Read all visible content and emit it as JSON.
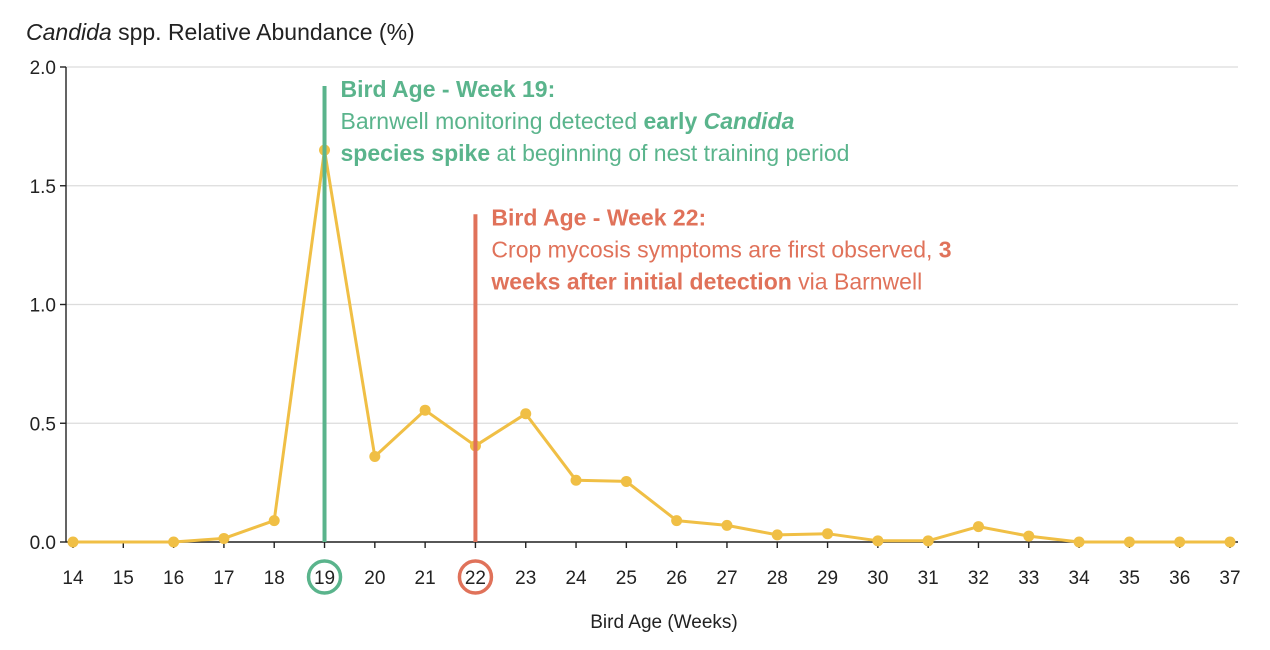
{
  "chart_data": {
    "type": "line",
    "title_italic": "Candida",
    "title_rest": " spp. Relative Abundance (%)",
    "xlabel": "Bird Age (Weeks)",
    "ylabel": "",
    "x": [
      14,
      15,
      16,
      17,
      18,
      19,
      20,
      21,
      22,
      23,
      24,
      25,
      26,
      27,
      28,
      29,
      30,
      31,
      32,
      33,
      34,
      35,
      36,
      37
    ],
    "xlim": [
      14,
      37
    ],
    "ylim": [
      0,
      2.0
    ],
    "yticks": [
      0,
      0.5,
      1.0,
      1.5,
      2.0
    ],
    "ytick_labels": [
      "0.0",
      "0.5",
      "1.0",
      "1.5",
      "2.0"
    ],
    "series": [
      {
        "name": "Candida spp.",
        "color": "#f0bf45",
        "values": [
          0.0,
          null,
          0.0,
          0.015,
          0.09,
          1.65,
          0.36,
          0.555,
          0.405,
          0.54,
          0.26,
          0.255,
          0.09,
          0.07,
          0.03,
          0.035,
          0.005,
          0.005,
          0.065,
          0.025,
          0.0,
          0.0,
          0.0,
          0.0
        ]
      }
    ],
    "annotations": [
      {
        "id": "week19",
        "x": 19,
        "y_top": 1.92,
        "color": "#5ab48c",
        "title": "Bird Age - Week 19:",
        "line1": [
          {
            "t": "Barnwell monitoring detected ",
            "s": ""
          },
          {
            "t": "early ",
            "s": "b"
          },
          {
            "t": "Candida",
            "s": "bi"
          }
        ],
        "line2": [
          {
            "t": "species spike",
            "s": "b"
          },
          {
            "t": " at beginning of nest training period",
            "s": ""
          }
        ]
      },
      {
        "id": "week22",
        "x": 22,
        "y_top": 1.38,
        "color": "#e0725a",
        "title": "Bird Age - Week 22:",
        "line1": [
          {
            "t": "Crop mycosis symptoms are first observed, ",
            "s": ""
          },
          {
            "t": "3",
            "s": "b"
          }
        ],
        "line2": [
          {
            "t": "weeks after initial detection",
            "s": "b"
          },
          {
            "t": " via Barnwell",
            "s": ""
          }
        ]
      }
    ]
  }
}
